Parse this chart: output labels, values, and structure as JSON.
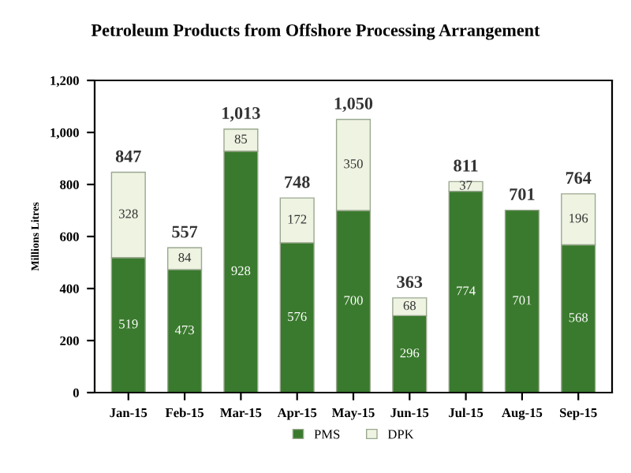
{
  "chart_data": {
    "type": "bar",
    "title": "Petroleum Products from Offshore Processing Arrangement",
    "ylabel": "Millions Litres",
    "categories": [
      "Jan-15",
      "Feb-15",
      "Mar-15",
      "Apr-15",
      "May-15",
      "Jun-15",
      "Jul-15",
      "Aug-15",
      "Sep-15"
    ],
    "stacked": true,
    "series": [
      {
        "name": "PMS",
        "color": "#3a7a2e",
        "values": [
          519,
          473,
          928,
          576,
          700,
          296,
          774,
          701,
          568
        ],
        "value_labels": [
          "519",
          "473",
          "928",
          "576",
          "700",
          "296",
          "774",
          "701",
          "568"
        ]
      },
      {
        "name": "DPK",
        "color": "#eef3e2",
        "values": [
          328,
          84,
          85,
          172,
          350,
          68,
          37,
          null,
          196
        ],
        "value_labels": [
          "328",
          "84",
          "85",
          "172",
          "350",
          "68",
          "37",
          null,
          "196"
        ]
      }
    ],
    "totals": [
      "847",
      "557",
      "1,013",
      "748",
      "1,050",
      "363",
      "811",
      "701",
      "764"
    ],
    "ylim": [
      0,
      1200
    ],
    "yticks": [
      0,
      200,
      400,
      600,
      800,
      {
        "value": 1000,
        "label": "1,000"
      },
      {
        "value": 1200,
        "label": "1,200"
      }
    ],
    "grid": false,
    "legend": "bottom"
  }
}
